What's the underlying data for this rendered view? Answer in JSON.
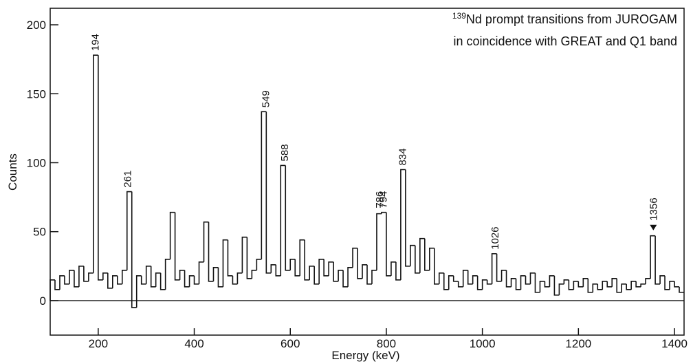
{
  "chart_data": {
    "type": "histogram",
    "title_superscript": "139",
    "title_lines": [
      "Nd prompt transitions from JUROGAM",
      "in coincidence with GREAT and Q1 band"
    ],
    "x_label": "Energy (keV)",
    "y_label": "Counts",
    "xlim": [
      100,
      1420
    ],
    "ylim": [
      -25,
      212
    ],
    "xticks": [
      200,
      400,
      600,
      800,
      1000,
      1200,
      1400
    ],
    "yticks": [
      0,
      50,
      100,
      150,
      200
    ],
    "color": "#111111",
    "bins": [
      100,
      110,
      120,
      130,
      140,
      150,
      160,
      170,
      180,
      190,
      200,
      210,
      220,
      230,
      240,
      250,
      260,
      270,
      280,
      290,
      300,
      310,
      320,
      330,
      340,
      350,
      360,
      370,
      380,
      390,
      400,
      410,
      420,
      430,
      440,
      450,
      460,
      470,
      480,
      490,
      500,
      510,
      520,
      530,
      540,
      550,
      560,
      570,
      580,
      590,
      600,
      610,
      620,
      630,
      640,
      650,
      660,
      670,
      680,
      690,
      700,
      710,
      720,
      730,
      740,
      750,
      760,
      770,
      780,
      790,
      800,
      810,
      820,
      830,
      840,
      850,
      860,
      870,
      880,
      890,
      900,
      910,
      920,
      930,
      940,
      950,
      960,
      970,
      980,
      990,
      1000,
      1010,
      1020,
      1030,
      1040,
      1050,
      1060,
      1070,
      1080,
      1090,
      1100,
      1110,
      1120,
      1130,
      1140,
      1150,
      1160,
      1170,
      1180,
      1190,
      1200,
      1210,
      1220,
      1230,
      1240,
      1250,
      1260,
      1270,
      1280,
      1290,
      1300,
      1310,
      1320,
      1330,
      1340,
      1350,
      1360,
      1370,
      1380,
      1390,
      1400,
      1410,
      1420
    ],
    "values": [
      15,
      8,
      18,
      12,
      22,
      10,
      25,
      14,
      20,
      178,
      15,
      20,
      9,
      18,
      12,
      22,
      79,
      -5,
      18,
      12,
      25,
      10,
      20,
      8,
      30,
      64,
      15,
      22,
      10,
      18,
      12,
      28,
      57,
      14,
      24,
      10,
      44,
      18,
      12,
      20,
      46,
      16,
      22,
      30,
      137,
      20,
      26,
      18,
      98,
      22,
      30,
      18,
      44,
      15,
      25,
      12,
      30,
      18,
      28,
      14,
      22,
      10,
      24,
      38,
      16,
      26,
      12,
      22,
      63,
      64,
      18,
      28,
      15,
      95,
      25,
      40,
      20,
      45,
      22,
      38,
      12,
      20,
      8,
      18,
      14,
      10,
      22,
      12,
      18,
      8,
      15,
      12,
      34,
      14,
      22,
      10,
      16,
      8,
      18,
      12,
      20,
      6,
      14,
      10,
      18,
      4,
      12,
      15,
      8,
      14,
      10,
      16,
      6,
      12,
      8,
      14,
      10,
      16,
      6,
      12,
      8,
      14,
      10,
      12,
      16,
      47,
      12,
      18,
      8,
      14,
      10,
      6
    ],
    "peaks": [
      {
        "label": 194
      },
      {
        "label": 261
      },
      {
        "label": 549
      },
      {
        "label": 588
      },
      {
        "label": 786
      },
      {
        "label": 794
      },
      {
        "label": 834
      },
      {
        "label": 1026
      },
      {
        "label": 1356,
        "marker": true
      }
    ]
  }
}
